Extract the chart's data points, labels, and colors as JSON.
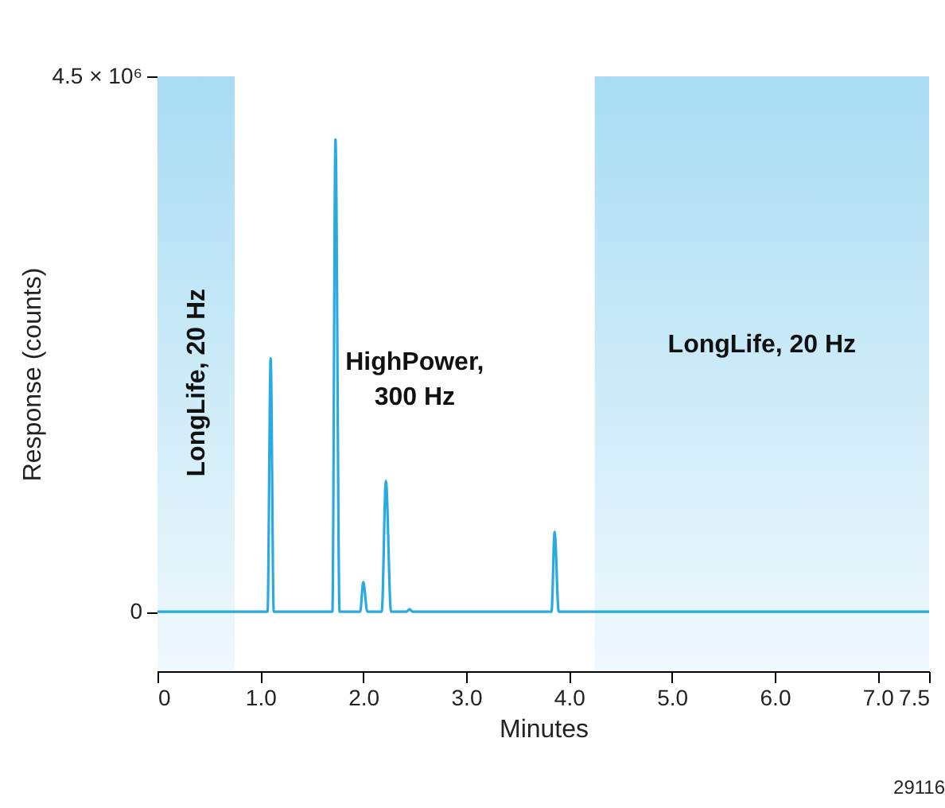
{
  "chart_data": {
    "type": "line",
    "xlabel": "Minutes",
    "ylabel": "Response (counts)",
    "xlim": [
      0,
      7.5
    ],
    "ylim": [
      -500000,
      4500000
    ],
    "xticks": [
      0,
      {
        "value": 1,
        "label": "1.0"
      },
      {
        "value": 2,
        "label": "2.0"
      },
      {
        "value": 3,
        "label": "3.0"
      },
      {
        "value": 4,
        "label": "4.0"
      },
      {
        "value": 5,
        "label": "5.0"
      },
      {
        "value": 6,
        "label": "6.0"
      },
      {
        "value": 7,
        "label": "7.0"
      },
      7.5
    ],
    "yticks": [
      0,
      {
        "value": 4500000,
        "label": "4.5 × 10⁶"
      }
    ],
    "grid": false,
    "series": [
      {
        "color": "#29abe2",
        "x": [
          0,
          1.07,
          1.1,
          1.13,
          1.7,
          1.73,
          1.77,
          1.97,
          2.0,
          2.04,
          2.18,
          2.22,
          2.27,
          2.42,
          2.45,
          2.48,
          3.83,
          3.86,
          3.9,
          7.5
        ],
        "values": [
          0,
          0,
          2130000,
          0,
          0,
          3970000,
          0,
          0,
          250000,
          0,
          0,
          1100000,
          0,
          0,
          20000,
          0,
          0,
          670000,
          0,
          0
        ]
      }
    ],
    "bands": [
      {
        "axis": "x",
        "from": 0,
        "to": 0.75,
        "label": "LongLife, 20 Hz",
        "color": "#a8dcf3"
      },
      {
        "axis": "x",
        "from": 4.25,
        "to": 7.5,
        "label": "LongLife, 20 Hz",
        "color": "#a8dcf3"
      }
    ],
    "annotations": [
      "HighPower, 300 Hz",
      "29116"
    ]
  }
}
